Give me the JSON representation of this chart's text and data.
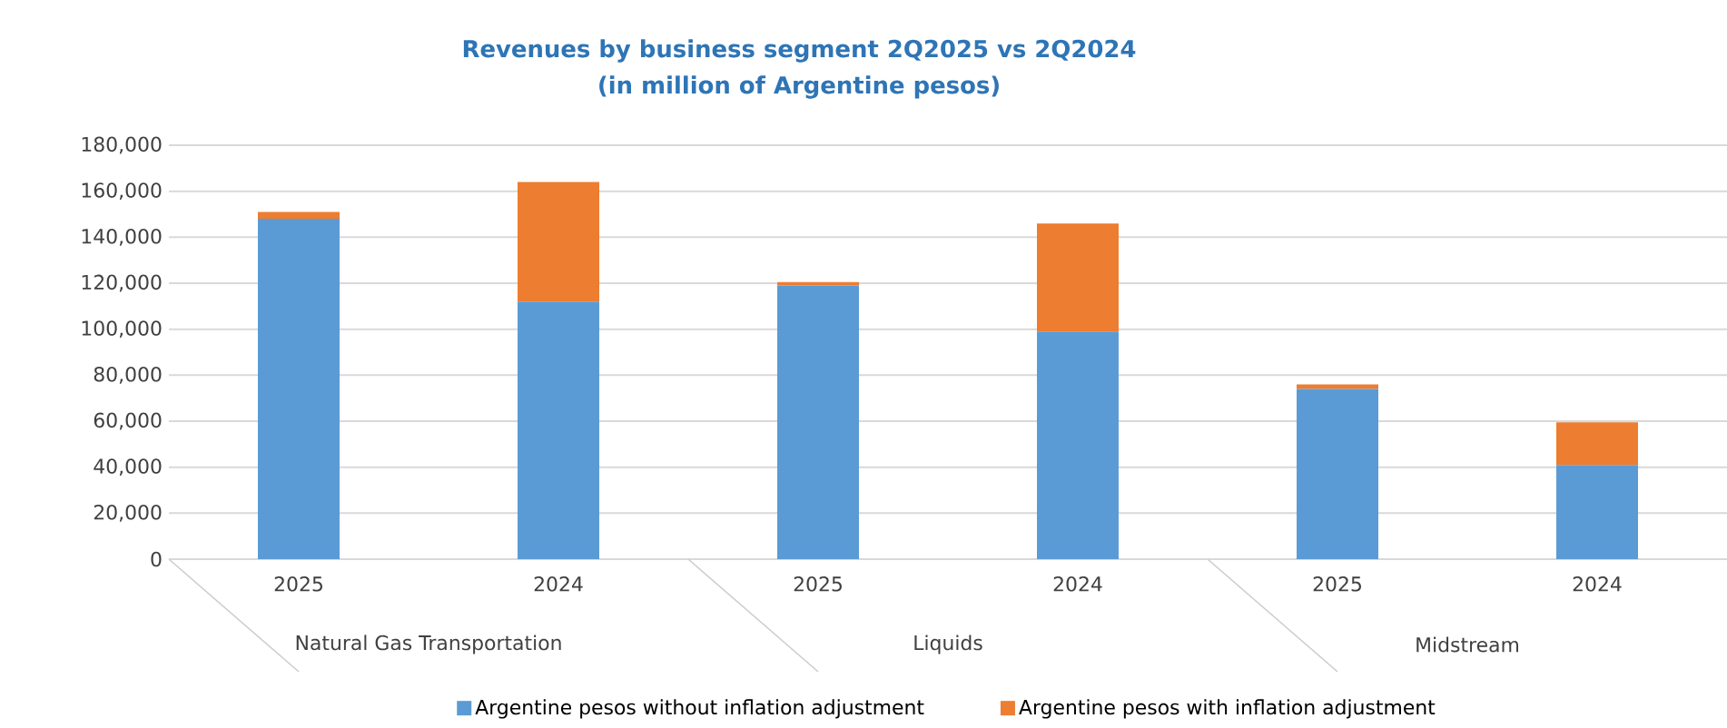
{
  "chart_data": {
    "type": "bar",
    "title": "Revenues by business segment 2Q2025 vs 2Q2024",
    "subtitle": "(in million of Argentine pesos)",
    "categories": [
      "2025",
      "2024",
      "2025",
      "2024",
      "2025",
      "2024"
    ],
    "annotations": [
      "Natural Gas Transportation",
      "Liquids",
      "Midstream"
    ],
    "stacked": true,
    "series": [
      {
        "name": "Argentine pesos without inflation adjustment",
        "color": "#5b9bd5",
        "values": [
          148000,
          112000,
          119000,
          99000,
          74000,
          41000
        ]
      },
      {
        "name": "Argentine pesos with inflation adjustment",
        "color": "#ed7d31",
        "values": [
          3000,
          52000,
          1500,
          47000,
          2000,
          18500
        ]
      }
    ],
    "ylim": [
      0,
      180000
    ],
    "yticks": [
      0,
      {
        "value": 20000,
        "label": "20,000"
      },
      {
        "value": 40000,
        "label": "40,000"
      },
      {
        "value": 60000,
        "label": "60,000"
      },
      {
        "value": 80000,
        "label": "80,000"
      },
      {
        "value": 100000,
        "label": "100,000"
      },
      {
        "value": 120000,
        "label": "120,000"
      },
      {
        "value": 140000,
        "label": "140,000"
      },
      {
        "value": 160000,
        "label": "160,000"
      },
      {
        "value": 180000,
        "label": "180,000"
      }
    ],
    "grid": "y",
    "legend": "bottom"
  }
}
